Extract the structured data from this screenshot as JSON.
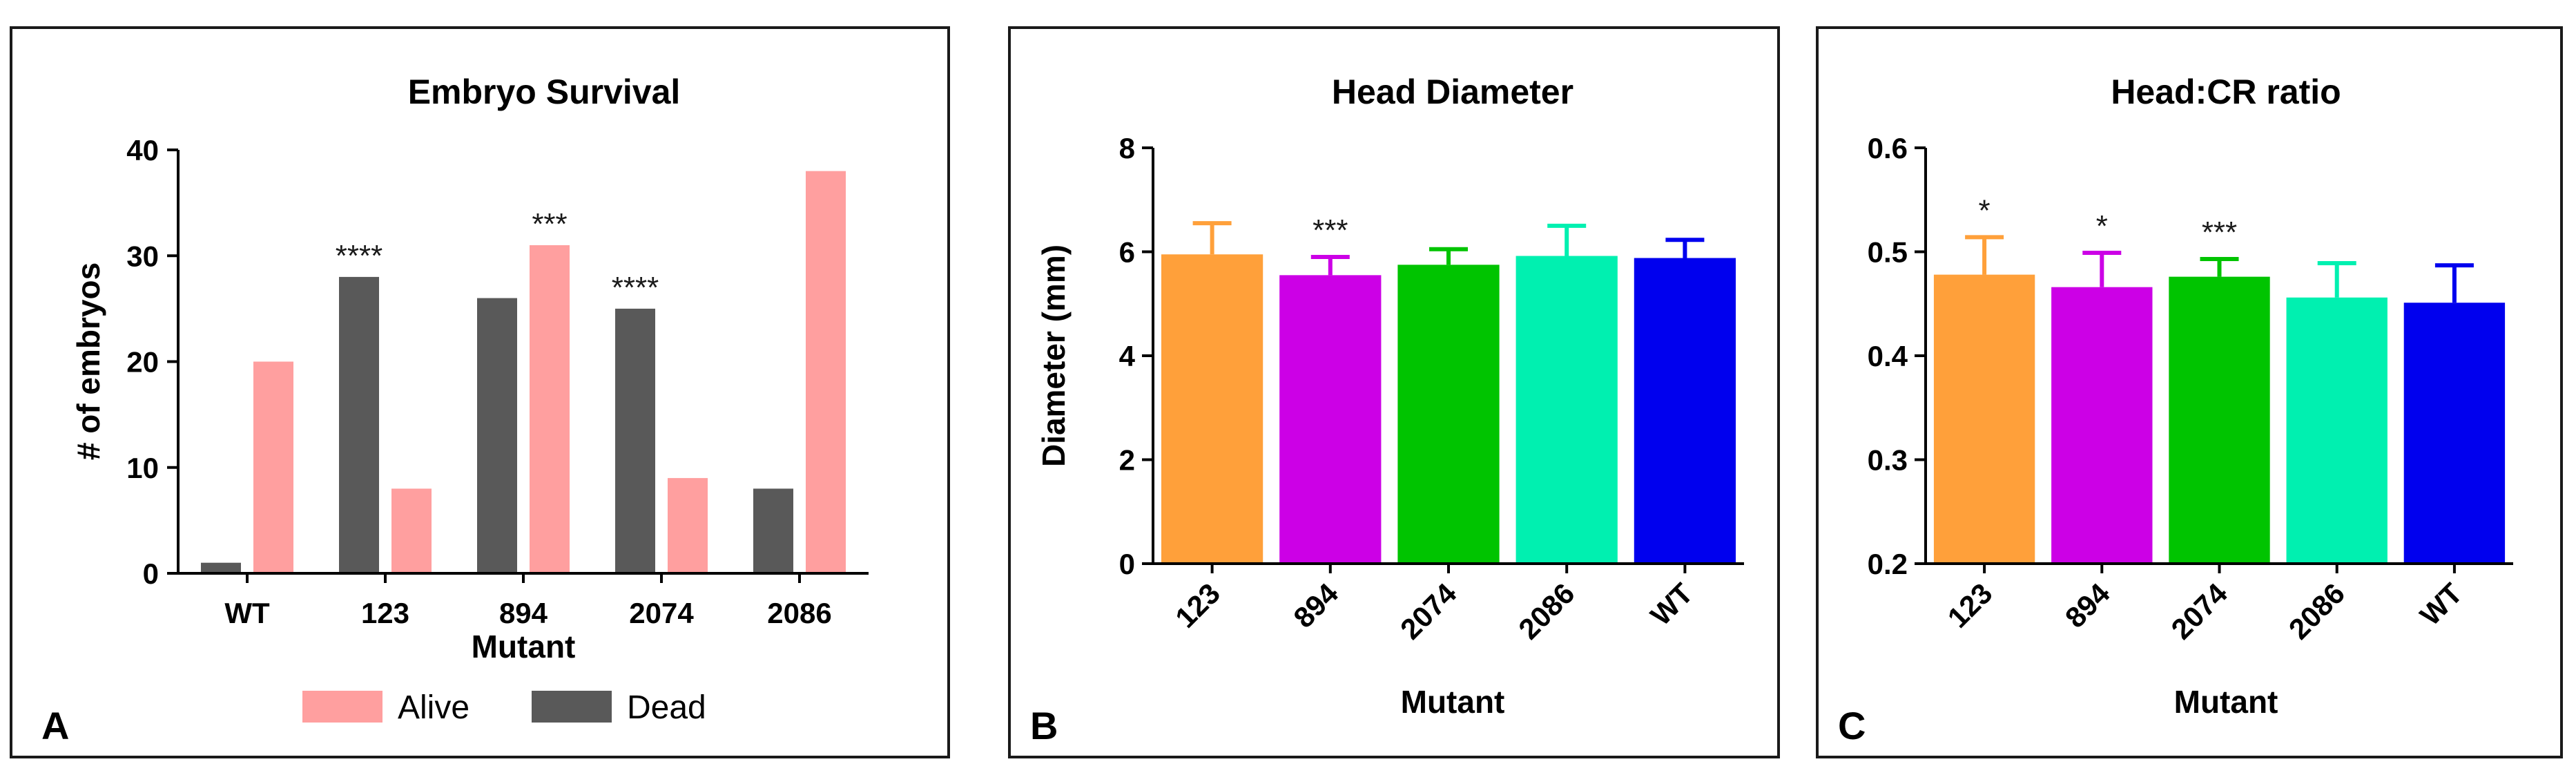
{
  "chart_data": [
    {
      "panel_label": "A",
      "type": "bar",
      "title": "Embryo Survival",
      "xlabel": "Mutant",
      "ylabel": "# of embryos",
      "ylim": [
        0,
        40
      ],
      "yticks": [
        0,
        10,
        20,
        30,
        40
      ],
      "categories": [
        "WT",
        "123",
        "894",
        "2074",
        "2086"
      ],
      "series": [
        {
          "name": "Dead",
          "color": "#595959",
          "values": [
            1,
            28,
            26,
            25,
            8
          ]
        },
        {
          "name": "Alive",
          "color": "#ff9f9f",
          "values": [
            20,
            8,
            31,
            9,
            38
          ]
        }
      ],
      "annotations": [
        {
          "category": "123",
          "text": "****"
        },
        {
          "category": "894",
          "text": "***"
        },
        {
          "category": "2074",
          "text": "****"
        }
      ],
      "legend": [
        {
          "label": "Alive",
          "color": "#ff9f9f"
        },
        {
          "label": "Dead",
          "color": "#595959"
        }
      ]
    },
    {
      "panel_label": "B",
      "type": "bar",
      "title": "Head Diameter",
      "xlabel": "Mutant",
      "ylabel": "Diameter (mm)",
      "ylim": [
        0,
        8
      ],
      "yticks": [
        "0",
        "2",
        "4",
        "6",
        "8"
      ],
      "categories": [
        "123",
        "894",
        "2074",
        "2086",
        "WT"
      ],
      "values": [
        5.95,
        5.55,
        5.75,
        5.92,
        5.88
      ],
      "errors": [
        0.6,
        0.35,
        0.3,
        0.58,
        0.35
      ],
      "colors": [
        "#ffa03a",
        "#cc00e6",
        "#00c400",
        "#00f0b0",
        "#0000ee"
      ],
      "annotations": [
        {
          "category": "894",
          "text": "***"
        }
      ]
    },
    {
      "panel_label": "C",
      "type": "bar",
      "title": "Head:CR ratio",
      "xlabel": "Mutant",
      "ylabel": "",
      "ylim": [
        0.2,
        0.6
      ],
      "yticks": [
        "0.2",
        "0.3",
        "0.4",
        "0.5",
        "0.6"
      ],
      "categories": [
        "123",
        "894",
        "2074",
        "2086",
        "WT"
      ],
      "values": [
        0.478,
        0.466,
        0.476,
        0.456,
        0.451
      ],
      "errors": [
        0.036,
        0.033,
        0.017,
        0.033,
        0.036
      ],
      "colors": [
        "#ffa03a",
        "#cc00e6",
        "#00c400",
        "#00f0b0",
        "#0000ee"
      ],
      "annotations": [
        {
          "category": "123",
          "text": "*"
        },
        {
          "category": "894",
          "text": "*"
        },
        {
          "category": "2074",
          "text": "***"
        }
      ]
    }
  ]
}
